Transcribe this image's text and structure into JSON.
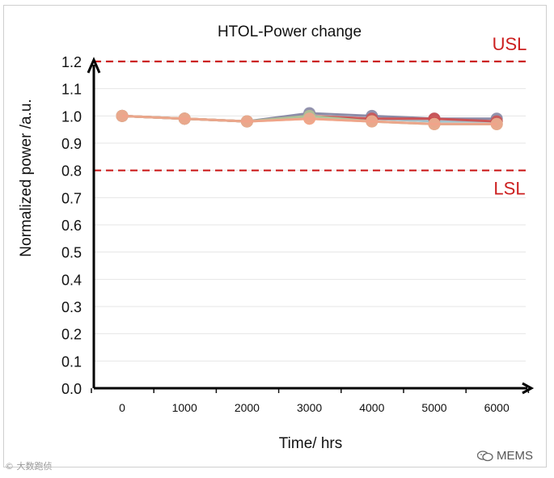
{
  "chart_data": {
    "type": "line",
    "title": "HTOL-Power change",
    "xlabel": "Time/ hrs",
    "ylabel": "Normalized  power /a.u.",
    "x": [
      0,
      1000,
      2000,
      3000,
      4000,
      5000,
      6000
    ],
    "x_tick_labels": [
      "0",
      "1000",
      "2000",
      "3000",
      "4000",
      "5000",
      "6000"
    ],
    "ylim": [
      0.0,
      1.2
    ],
    "y_ticks": [
      0.0,
      0.1,
      0.2,
      0.3,
      0.4,
      0.5,
      0.6,
      0.7,
      0.8,
      0.9,
      1.0,
      1.1,
      1.2
    ],
    "y_tick_labels": [
      "0.0",
      "0.1",
      "0.2",
      "0.3",
      "0.4",
      "0.5",
      "0.6",
      "0.7",
      "0.8",
      "0.9",
      "1.0",
      "1.1",
      "1.2"
    ],
    "grid": "horizontal",
    "series": [
      {
        "color": "#7f7f9f",
        "values": [
          1.0,
          0.99,
          0.98,
          1.01,
          1.0,
          0.99,
          0.99
        ]
      },
      {
        "color": "#9bbcc8",
        "values": [
          1.0,
          0.99,
          0.98,
          1.0,
          0.99,
          0.98,
          0.98
        ]
      },
      {
        "color": "#d04a4a",
        "values": [
          1.0,
          0.99,
          0.98,
          1.0,
          0.99,
          0.99,
          0.98
        ]
      },
      {
        "color": "#e8b37a",
        "values": [
          1.0,
          0.99,
          0.98,
          0.99,
          0.98,
          0.97,
          0.97
        ]
      },
      {
        "color": "#a9cfa0",
        "values": [
          1.0,
          0.99,
          0.98,
          1.0,
          0.98,
          0.97,
          0.97
        ]
      },
      {
        "color": "#f2a28a",
        "values": [
          1.0,
          0.99,
          0.98,
          0.99,
          0.98,
          0.97,
          0.97
        ]
      }
    ],
    "reference_lines": [
      {
        "label": "USL",
        "value": 1.2,
        "color": "#cc1f1f",
        "style": "dashed"
      },
      {
        "label": "LSL",
        "value": 0.8,
        "color": "#cc1f1f",
        "style": "dashed"
      }
    ]
  },
  "watermarks": {
    "left": "© 大数跑侦",
    "right": "MEMS",
    "right_icon": "wechat-icon"
  }
}
